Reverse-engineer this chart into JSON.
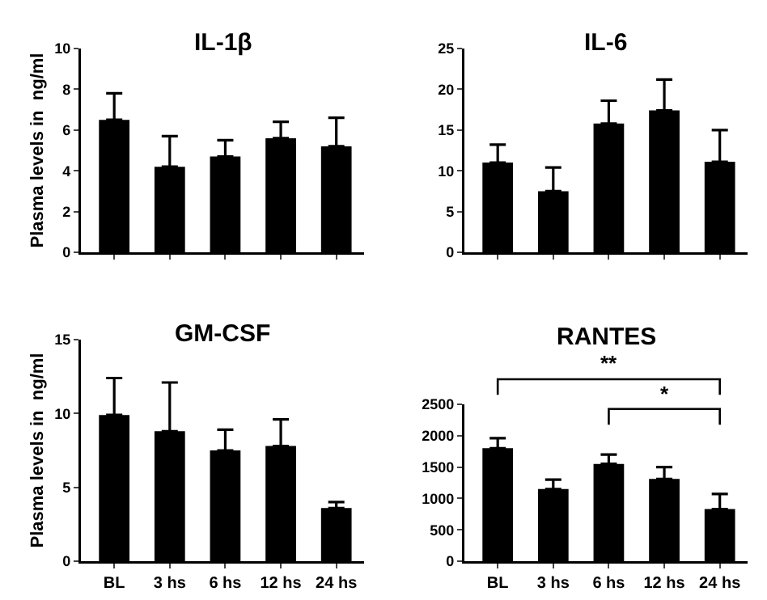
{
  "chart_data": [
    {
      "type": "bar",
      "title": "IL-1β",
      "ylabel": "Plasma levels in  ng/ml",
      "categories": [
        null,
        null,
        null,
        null,
        null
      ],
      "values": [
        6.5,
        4.2,
        4.7,
        5.6,
        5.2
      ],
      "errors": [
        [
          6.5,
          7.8
        ],
        [
          4.2,
          5.7
        ],
        [
          4.7,
          5.5
        ],
        [
          5.6,
          6.4
        ],
        [
          5.2,
          6.6
        ]
      ],
      "color": "#000000",
      "ylim": [
        0,
        10
      ],
      "yticks": [
        0,
        2,
        4,
        6,
        8,
        10
      ],
      "grid": false
    },
    {
      "type": "bar",
      "title": "IL-6",
      "categories": [
        null,
        null,
        null,
        null,
        null
      ],
      "values": [
        11,
        7.5,
        15.8,
        17.4,
        11.1
      ],
      "errors": [
        [
          11,
          13.2
        ],
        [
          7.5,
          10.4
        ],
        [
          15.8,
          18.6
        ],
        [
          17.4,
          21.2
        ],
        [
          11.1,
          15
        ]
      ],
      "color": "#000000",
      "ylim": [
        0,
        25
      ],
      "yticks": [
        0,
        5,
        10,
        15,
        20,
        25
      ],
      "grid": false
    },
    {
      "type": "bar",
      "title": "GM-CSF",
      "ylabel": "Plasma levels in  ng/ml",
      "categories": [
        "BL",
        "3 hs",
        "6 hs",
        "12 hs",
        "24 hs"
      ],
      "values": [
        9.9,
        8.8,
        7.5,
        7.8,
        3.6
      ],
      "errors": [
        [
          9.9,
          12.4
        ],
        [
          8.8,
          12.1
        ],
        [
          7.5,
          8.9
        ],
        [
          7.8,
          9.6
        ],
        [
          3.6,
          4.0
        ]
      ],
      "color": "#000000",
      "ylim": [
        0,
        15
      ],
      "yticks": [
        0,
        5,
        10,
        15
      ],
      "grid": false
    },
    {
      "type": "bar",
      "title": "RANTES",
      "categories": [
        "BL",
        "3 hs",
        "6 hs",
        "12 hs",
        "24 hs"
      ],
      "values": [
        1800,
        1150,
        1550,
        1310,
        830
      ],
      "errors": [
        [
          1800,
          1960
        ],
        [
          1150,
          1300
        ],
        [
          1550,
          1700
        ],
        [
          1310,
          1500
        ],
        [
          830,
          1070
        ]
      ],
      "color": "#000000",
      "ylim": [
        0,
        2500
      ],
      "yticks": [
        0,
        500,
        1000,
        1500,
        2000,
        2500
      ],
      "grid": false,
      "annotations": [
        "**",
        "*"
      ]
    }
  ]
}
